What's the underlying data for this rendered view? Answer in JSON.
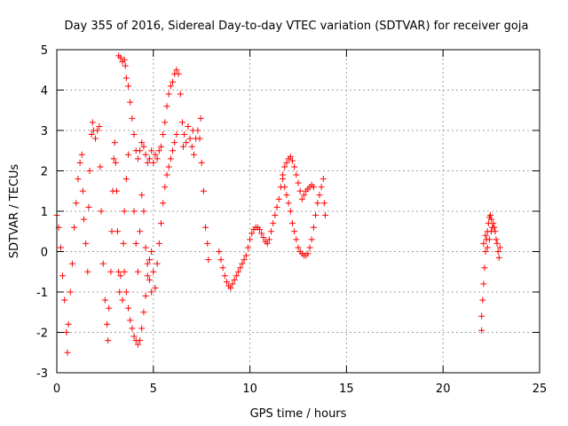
{
  "chart_data": {
    "type": "scatter",
    "title": "Day 355 of 2016, Sidereal Day-to-day VTEC variation (SDTVAR) for receiver goja",
    "xlabel": "GPS time / hours",
    "ylabel": "SDTVAR / TECUs",
    "xlim": [
      0,
      25
    ],
    "ylim": [
      -3,
      5
    ],
    "xticks": [
      0,
      5,
      10,
      15,
      20,
      25
    ],
    "yticks": [
      -3,
      -2,
      -1,
      0,
      1,
      2,
      3,
      4,
      5
    ],
    "x_tick_labels": [
      "0",
      "5",
      "10",
      "15",
      "20",
      "25"
    ],
    "y_tick_labels": [
      "-3",
      "-2",
      "-1",
      "0",
      "1",
      "2",
      "3",
      "4",
      "5"
    ],
    "grid": true,
    "marker": "+",
    "colors": {
      "series": "#ff0000",
      "grid": "#a0a0a0",
      "axis": "#000000"
    },
    "series": [
      {
        "name": "SDTVAR",
        "points": [
          [
            0.0,
            0.9
          ],
          [
            0.1,
            0.6
          ],
          [
            0.2,
            0.1
          ],
          [
            0.3,
            -0.6
          ],
          [
            0.4,
            -1.2
          ],
          [
            0.5,
            -2.0
          ],
          [
            0.55,
            -2.5
          ],
          [
            0.6,
            -1.8
          ],
          [
            0.7,
            -1.0
          ],
          [
            0.8,
            -0.3
          ],
          [
            0.9,
            0.6
          ],
          [
            1.0,
            1.2
          ],
          [
            1.1,
            1.8
          ],
          [
            1.2,
            2.2
          ],
          [
            1.3,
            2.4
          ],
          [
            1.35,
            1.5
          ],
          [
            1.4,
            0.8
          ],
          [
            1.5,
            0.2
          ],
          [
            1.6,
            -0.5
          ],
          [
            1.65,
            1.1
          ],
          [
            1.7,
            2.0
          ],
          [
            1.8,
            2.9
          ],
          [
            1.85,
            3.2
          ],
          [
            1.9,
            3.0
          ],
          [
            2.0,
            2.8
          ],
          [
            2.1,
            3.0
          ],
          [
            2.2,
            3.1
          ],
          [
            2.25,
            2.1
          ],
          [
            2.3,
            1.0
          ],
          [
            2.4,
            -0.3
          ],
          [
            2.5,
            -1.2
          ],
          [
            2.6,
            -1.8
          ],
          [
            2.65,
            -2.2
          ],
          [
            2.7,
            -1.4
          ],
          [
            2.8,
            -0.5
          ],
          [
            2.85,
            0.5
          ],
          [
            2.9,
            1.5
          ],
          [
            2.95,
            2.3
          ],
          [
            3.0,
            2.7
          ],
          [
            3.05,
            2.2
          ],
          [
            3.1,
            1.5
          ],
          [
            3.15,
            0.5
          ],
          [
            3.2,
            -0.5
          ],
          [
            3.25,
            -1.0
          ],
          [
            3.3,
            -0.6
          ],
          [
            3.4,
            -1.2
          ],
          [
            3.45,
            0.2
          ],
          [
            3.5,
            1.0
          ],
          [
            3.6,
            1.8
          ],
          [
            3.7,
            2.4
          ],
          [
            3.2,
            4.85
          ],
          [
            3.3,
            4.8
          ],
          [
            3.4,
            4.7
          ],
          [
            3.5,
            4.75
          ],
          [
            3.55,
            4.6
          ],
          [
            3.6,
            4.3
          ],
          [
            3.7,
            4.1
          ],
          [
            3.8,
            3.7
          ],
          [
            3.9,
            3.3
          ],
          [
            4.0,
            2.9
          ],
          [
            4.1,
            2.5
          ],
          [
            4.2,
            2.3
          ],
          [
            4.3,
            2.5
          ],
          [
            4.4,
            2.7
          ],
          [
            4.5,
            2.6
          ],
          [
            4.6,
            2.4
          ],
          [
            4.7,
            2.2
          ],
          [
            4.8,
            2.3
          ],
          [
            4.9,
            2.5
          ],
          [
            5.0,
            2.2
          ],
          [
            5.1,
            2.4
          ],
          [
            5.2,
            2.3
          ],
          [
            5.3,
            2.5
          ],
          [
            5.4,
            2.6
          ],
          [
            5.5,
            2.9
          ],
          [
            5.6,
            3.2
          ],
          [
            5.7,
            3.6
          ],
          [
            5.8,
            3.9
          ],
          [
            5.9,
            4.1
          ],
          [
            6.0,
            4.2
          ],
          [
            6.1,
            4.4
          ],
          [
            6.2,
            4.5
          ],
          [
            6.3,
            4.4
          ],
          [
            6.4,
            3.9
          ],
          [
            6.5,
            3.2
          ],
          [
            6.55,
            2.6
          ],
          [
            6.6,
            2.9
          ],
          [
            6.7,
            2.7
          ],
          [
            6.8,
            3.1
          ],
          [
            6.9,
            2.8
          ],
          [
            7.0,
            2.6
          ],
          [
            7.05,
            3.0
          ],
          [
            7.1,
            2.4
          ],
          [
            7.2,
            2.8
          ],
          [
            7.3,
            3.0
          ],
          [
            7.4,
            2.8
          ],
          [
            7.45,
            3.3
          ],
          [
            7.5,
            2.2
          ],
          [
            7.6,
            1.5
          ],
          [
            7.7,
            0.6
          ],
          [
            7.8,
            0.2
          ],
          [
            7.85,
            -0.2
          ],
          [
            3.5,
            -0.5
          ],
          [
            3.6,
            -1.0
          ],
          [
            3.7,
            -1.4
          ],
          [
            3.8,
            -1.7
          ],
          [
            3.9,
            -1.9
          ],
          [
            4.0,
            -2.1
          ],
          [
            4.1,
            -2.2
          ],
          [
            4.2,
            -2.3
          ],
          [
            4.3,
            -2.2
          ],
          [
            4.4,
            -1.9
          ],
          [
            4.5,
            -1.5
          ],
          [
            4.6,
            -1.1
          ],
          [
            4.7,
            -0.6
          ],
          [
            4.8,
            -0.2
          ],
          [
            4.9,
            0.0
          ],
          [
            5.0,
            -0.5
          ],
          [
            5.1,
            -0.9
          ],
          [
            5.2,
            -0.3
          ],
          [
            5.3,
            0.2
          ],
          [
            5.4,
            0.7
          ],
          [
            5.5,
            1.2
          ],
          [
            5.6,
            1.6
          ],
          [
            5.7,
            1.9
          ],
          [
            5.8,
            2.1
          ],
          [
            5.9,
            2.3
          ],
          [
            6.0,
            2.5
          ],
          [
            6.1,
            2.7
          ],
          [
            6.2,
            2.9
          ],
          [
            4.0,
            1.0
          ],
          [
            4.1,
            0.2
          ],
          [
            4.2,
            -0.5
          ],
          [
            4.3,
            0.5
          ],
          [
            4.4,
            1.4
          ],
          [
            4.5,
            1.0
          ],
          [
            4.6,
            0.1
          ],
          [
            4.7,
            -0.3
          ],
          [
            4.8,
            -0.7
          ],
          [
            4.9,
            -1.0
          ],
          [
            8.4,
            0.0
          ],
          [
            8.5,
            -0.2
          ],
          [
            8.6,
            -0.4
          ],
          [
            8.7,
            -0.6
          ],
          [
            8.8,
            -0.75
          ],
          [
            8.9,
            -0.85
          ],
          [
            9.0,
            -0.9
          ],
          [
            9.1,
            -0.8
          ],
          [
            9.2,
            -0.7
          ],
          [
            9.3,
            -0.6
          ],
          [
            9.4,
            -0.5
          ],
          [
            9.5,
            -0.4
          ],
          [
            9.6,
            -0.3
          ],
          [
            9.7,
            -0.2
          ],
          [
            9.8,
            -0.1
          ],
          [
            9.9,
            0.1
          ],
          [
            10.0,
            0.3
          ],
          [
            10.1,
            0.45
          ],
          [
            10.2,
            0.55
          ],
          [
            10.3,
            0.6
          ],
          [
            10.4,
            0.6
          ],
          [
            10.5,
            0.55
          ],
          [
            10.6,
            0.45
          ],
          [
            10.7,
            0.35
          ],
          [
            10.8,
            0.25
          ],
          [
            10.9,
            0.2
          ],
          [
            11.0,
            0.3
          ],
          [
            11.1,
            0.5
          ],
          [
            11.2,
            0.7
          ],
          [
            11.3,
            0.9
          ],
          [
            11.4,
            1.1
          ],
          [
            11.5,
            1.3
          ],
          [
            11.6,
            1.6
          ],
          [
            11.7,
            1.9
          ],
          [
            11.8,
            2.1
          ],
          [
            11.9,
            2.2
          ],
          [
            12.0,
            2.3
          ],
          [
            12.1,
            2.35
          ],
          [
            12.2,
            2.25
          ],
          [
            12.3,
            2.1
          ],
          [
            12.4,
            1.9
          ],
          [
            12.5,
            1.7
          ],
          [
            12.6,
            1.5
          ],
          [
            12.7,
            1.3
          ],
          [
            12.8,
            1.4
          ],
          [
            12.9,
            1.5
          ],
          [
            13.0,
            1.55
          ],
          [
            13.1,
            1.6
          ],
          [
            13.2,
            1.65
          ],
          [
            13.3,
            1.6
          ],
          [
            11.7,
            1.8
          ],
          [
            11.8,
            1.6
          ],
          [
            11.9,
            1.4
          ],
          [
            12.0,
            1.2
          ],
          [
            12.1,
            1.0
          ],
          [
            12.2,
            0.7
          ],
          [
            12.3,
            0.5
          ],
          [
            12.4,
            0.3
          ],
          [
            12.5,
            0.1
          ],
          [
            12.6,
            0.0
          ],
          [
            12.7,
            -0.05
          ],
          [
            12.8,
            -0.1
          ],
          [
            12.9,
            -0.1
          ],
          [
            13.0,
            -0.05
          ],
          [
            13.1,
            0.1
          ],
          [
            13.2,
            0.3
          ],
          [
            13.3,
            0.6
          ],
          [
            13.4,
            0.9
          ],
          [
            13.5,
            1.2
          ],
          [
            13.6,
            1.4
          ],
          [
            13.7,
            1.6
          ],
          [
            13.8,
            1.8
          ],
          [
            13.85,
            1.2
          ],
          [
            13.9,
            0.9
          ],
          [
            22.0,
            -1.6
          ],
          [
            22.05,
            -1.2
          ],
          [
            22.1,
            -0.8
          ],
          [
            22.15,
            -0.4
          ],
          [
            22.2,
            0.0
          ],
          [
            22.25,
            0.3
          ],
          [
            22.3,
            0.5
          ],
          [
            22.35,
            0.7
          ],
          [
            22.4,
            0.85
          ],
          [
            22.45,
            0.9
          ],
          [
            22.5,
            0.8
          ],
          [
            22.55,
            0.6
          ],
          [
            22.6,
            0.7
          ],
          [
            22.65,
            0.6
          ],
          [
            22.7,
            0.5
          ],
          [
            22.75,
            0.3
          ],
          [
            22.8,
            0.2
          ],
          [
            22.85,
            0.0
          ],
          [
            22.9,
            -0.15
          ],
          [
            22.95,
            0.1
          ],
          [
            22.0,
            -1.95
          ],
          [
            22.1,
            0.2
          ],
          [
            22.2,
            0.4
          ],
          [
            22.3,
            0.1
          ],
          [
            22.4,
            0.3
          ],
          [
            22.5,
            0.5
          ]
        ]
      }
    ]
  }
}
